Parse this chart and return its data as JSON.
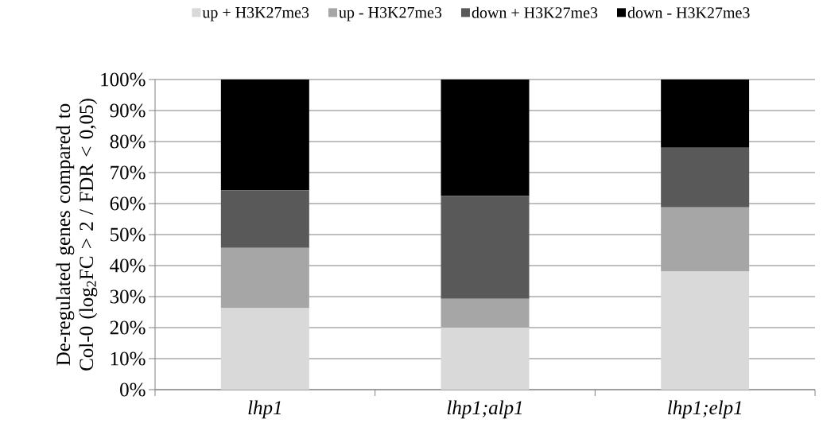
{
  "chart_data": {
    "type": "bar",
    "stacked": true,
    "ylabel": "De-regulated genes compared to Col-0 (log$_{2}$FC > 2 / FDR < 0,05)",
    "categories": [
      "lhp1",
      "lhp1;alp1",
      "lhp1;elp1"
    ],
    "series": [
      {
        "name": "up + H3K27me3",
        "color": "#d9d9d9",
        "values": [
          26.3,
          20.0,
          38.1
        ]
      },
      {
        "name": "up - H3K27me3",
        "color": "#a6a6a6",
        "values": [
          19.4,
          9.3,
          20.7
        ]
      },
      {
        "name": "down + H3K27me3",
        "color": "#595959",
        "values": [
          18.6,
          33.2,
          19.2
        ]
      },
      {
        "name": "down - H3K27me3",
        "color": "#000000",
        "values": [
          35.7,
          37.5,
          22.0
        ]
      }
    ],
    "ylim": [
      0,
      100
    ],
    "yticks": [
      {
        "value": 0,
        "label": "0%"
      },
      {
        "value": 10,
        "label": "10%"
      },
      {
        "value": 20,
        "label": "20%"
      },
      {
        "value": 30,
        "label": "30%"
      },
      {
        "value": 40,
        "label": "40%"
      },
      {
        "value": 50,
        "label": "50%"
      },
      {
        "value": 60,
        "label": "60%"
      },
      {
        "value": 70,
        "label": "70%"
      },
      {
        "value": 80,
        "label": "80%"
      },
      {
        "value": 90,
        "label": "90%"
      },
      {
        "value": 100,
        "label": "100%"
      }
    ],
    "grid": "y",
    "legend": "top"
  }
}
